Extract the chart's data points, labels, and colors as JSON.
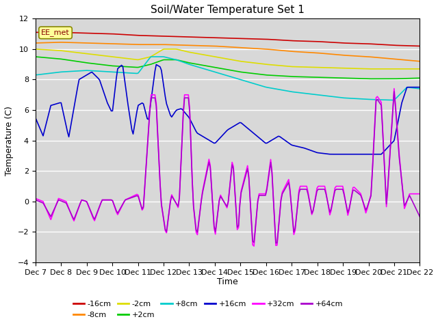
{
  "title": "Soil/Water Temperature Set 1",
  "xlabel": "Time",
  "ylabel": "Temperature (C)",
  "ylim": [
    -4,
    12
  ],
  "xlim": [
    0,
    15
  ],
  "x_tick_labels": [
    "Dec 7",
    "Dec 8",
    "Dec 9",
    "Dec 10",
    "Dec 11",
    "Dec 12",
    "Dec 13",
    "Dec 14",
    "Dec 15",
    "Dec 16",
    "Dec 17",
    "Dec 18",
    "Dec 19",
    "Dec 20",
    "Dec 21",
    "Dec 22"
  ],
  "yticks": [
    -4,
    -2,
    0,
    2,
    4,
    6,
    8,
    10,
    12
  ],
  "annotation": "EE_met",
  "bg_color": "#d8d8d8",
  "grid_color": "#ffffff",
  "legend": [
    {
      "label": "-16cm",
      "color": "#cc0000"
    },
    {
      "label": "-8cm",
      "color": "#ff8800"
    },
    {
      "label": "-2cm",
      "color": "#dddd00"
    },
    {
      "label": "+2cm",
      "color": "#00cc00"
    },
    {
      "label": "+8cm",
      "color": "#00cccc"
    },
    {
      "label": "+16cm",
      "color": "#0000cc"
    },
    {
      "label": "+32cm",
      "color": "#ff00ff"
    },
    {
      "label": "+64cm",
      "color": "#aa00cc"
    }
  ],
  "legend_row1": [
    "-16cm",
    "-8cm",
    "-2cm",
    "+2cm",
    "+8cm",
    "+16cm"
  ],
  "legend_row2": [
    "+32cm",
    "+64cm"
  ]
}
